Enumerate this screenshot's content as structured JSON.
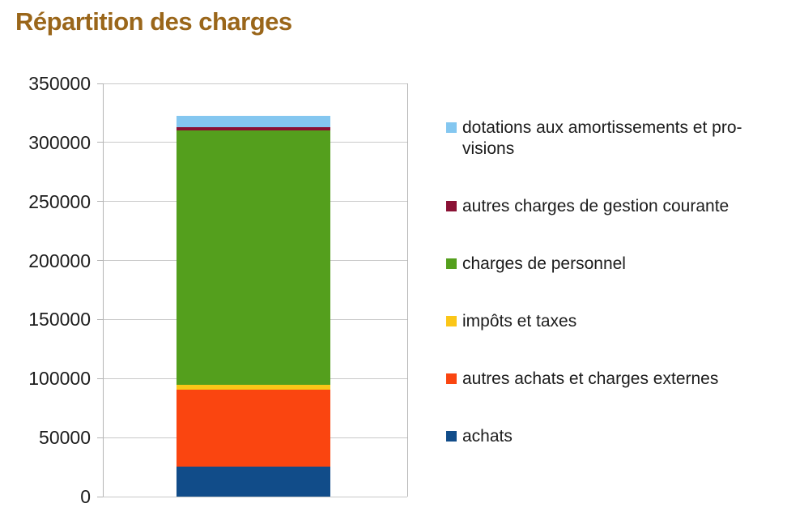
{
  "title": "Répartition des charges",
  "colors": {
    "title": "#9a661a",
    "axis_text": "#1c1c1c",
    "gridline": "#c9c9c9",
    "axis_line": "#b4b4b4",
    "background": "#ffffff"
  },
  "chart_data": {
    "type": "bar",
    "stacked": true,
    "title": "Répartition des charges",
    "categories": [
      ""
    ],
    "series": [
      {
        "name": "achats",
        "values": [
          25500
        ],
        "color": "#114c89"
      },
      {
        "name": "autres achats et charges externes",
        "values": [
          65000
        ],
        "color": "#fa4510"
      },
      {
        "name": "impôts et taxes",
        "values": [
          4500
        ],
        "color": "#fbc618"
      },
      {
        "name": "charges de personnel",
        "values": [
          215500
        ],
        "color": "#549f1d"
      },
      {
        "name": "autres charges de gestion courante",
        "values": [
          2500
        ],
        "color": "#8a1134"
      },
      {
        "name": "dotations aux amortissements et provisions",
        "values": [
          9500
        ],
        "color": "#84c7f0"
      }
    ],
    "total": 322500,
    "xlabel": "",
    "ylabel": "",
    "ylim": [
      0,
      350000
    ],
    "ytick_step": 50000,
    "yticks": [
      "0",
      "50000",
      "100000",
      "150000",
      "200000",
      "250000",
      "300000",
      "350000"
    ],
    "grid": true,
    "legend_position": "right"
  },
  "legend": {
    "items": [
      {
        "label": "dotations aux amortissements et pro-\nvisions",
        "color": "#84c7f0"
      },
      {
        "label": "autres charges de gestion courante",
        "color": "#8a1134"
      },
      {
        "label": "charges de personnel",
        "color": "#549f1d"
      },
      {
        "label": "impôts et taxes",
        "color": "#fbc618"
      },
      {
        "label": "autres achats et charges externes",
        "color": "#fa4510"
      },
      {
        "label": "achats",
        "color": "#114c89"
      }
    ]
  }
}
